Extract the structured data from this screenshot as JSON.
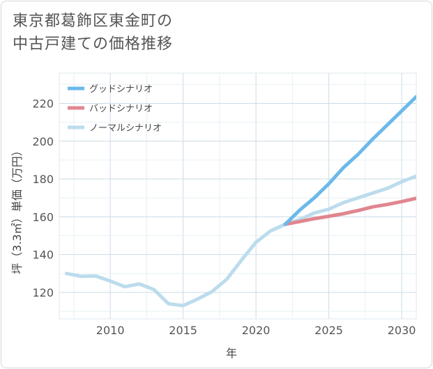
{
  "title": {
    "line1": "東京都葛飾区東金町の",
    "line2": "中古戸建ての価格推移"
  },
  "chart_data": {
    "type": "line",
    "xlabel": "年",
    "ylabel": "坪（3.3㎡）単価（万円）",
    "xlim": [
      2006.5,
      2031
    ],
    "ylim": [
      106,
      236
    ],
    "x_ticks": [
      2010,
      2015,
      2020,
      2025,
      2030
    ],
    "y_ticks": [
      120,
      140,
      160,
      180,
      200,
      220
    ],
    "grid": true,
    "legend_position": "top-left",
    "series": [
      {
        "name": "グッドシナリオ",
        "color": "#6cb9ea",
        "x": [
          2022,
          2023,
          2024,
          2025,
          2026,
          2027,
          2028,
          2029,
          2030,
          2031
        ],
        "y": [
          156,
          163.5,
          170,
          177.5,
          186,
          193,
          201,
          208.5,
          216,
          223.5
        ]
      },
      {
        "name": "バッドシナリオ",
        "color": "#e0868f",
        "x": [
          2022,
          2023,
          2024,
          2025,
          2026,
          2027,
          2028,
          2029,
          2030,
          2031
        ],
        "y": [
          156,
          157.5,
          159,
          160.3,
          161.6,
          163.3,
          165.2,
          166.5,
          168,
          169.8
        ]
      },
      {
        "name": "ノーマルシナリオ",
        "color": "#bcdced",
        "x": [
          2007,
          2008,
          2009,
          2010,
          2011,
          2012,
          2013,
          2014,
          2015,
          2016,
          2017,
          2018,
          2019,
          2020,
          2021,
          2022,
          2023,
          2024,
          2025,
          2026,
          2027,
          2028,
          2029,
          2030,
          2031
        ],
        "y": [
          130,
          128.5,
          128.7,
          126,
          123,
          124.5,
          121.5,
          114,
          113,
          116.5,
          120.5,
          127,
          137,
          146.5,
          152.5,
          156,
          158.5,
          162,
          164,
          167.5,
          170,
          172.5,
          175,
          178.5,
          181.5
        ]
      }
    ]
  }
}
